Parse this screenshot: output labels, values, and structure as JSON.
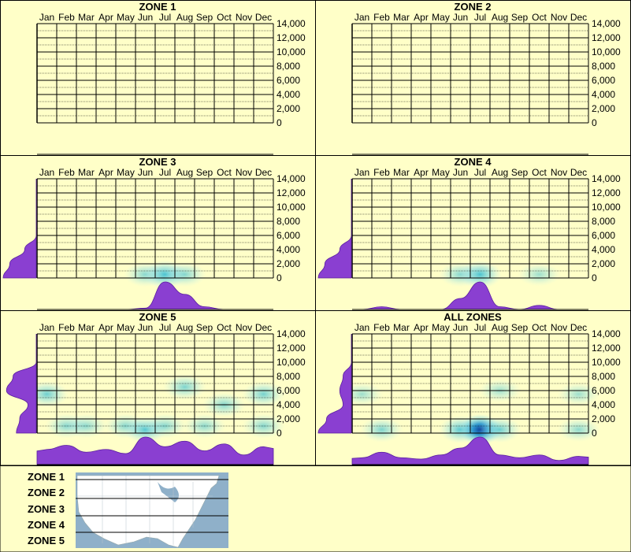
{
  "months": [
    "Jan",
    "Feb",
    "Mar",
    "Apr",
    "May",
    "Jun",
    "Jul",
    "Aug",
    "Sep",
    "Oct",
    "Nov",
    "Dec"
  ],
  "y_ticks": [
    "0",
    "2,000",
    "4,000",
    "6,000",
    "8,000",
    "10,000",
    "12,000",
    "14,000"
  ],
  "colors": {
    "background": "#ffffc8",
    "density": "#8a3fd1",
    "heat_low": "#c5f0f5",
    "heat_mid": "#2ab7d0",
    "heat_high": "#0a3f9c",
    "map_water": "#8fb0c9",
    "map_land": "#ffffff"
  },
  "chart_data": [
    {
      "type": "heatmap",
      "title": "ZONE 1",
      "ylim": [
        0,
        14000
      ],
      "x": "months",
      "cells": [],
      "month_profile": [],
      "elevation_profile": []
    },
    {
      "type": "heatmap",
      "title": "ZONE 2",
      "ylim": [
        0,
        14000
      ],
      "x": "months",
      "cells": [],
      "month_profile": [],
      "elevation_profile": []
    },
    {
      "type": "heatmap",
      "title": "ZONE 3",
      "ylim": [
        0,
        14000
      ],
      "x": "months",
      "cells": [
        {
          "month": "Jun",
          "elevation": 500,
          "intensity": 0.3
        },
        {
          "month": "Jul",
          "elevation": 500,
          "intensity": 0.7
        },
        {
          "month": "Aug",
          "elevation": 500,
          "intensity": 0.3
        }
      ],
      "month_profile": [
        0,
        0,
        0,
        0,
        0,
        0.05,
        1.0,
        0.55,
        0.1,
        0,
        0,
        0
      ],
      "elevation_profile": [
        1.0,
        0.8,
        0.35,
        0,
        0,
        0,
        0,
        0
      ]
    },
    {
      "type": "heatmap",
      "title": "ZONE 4",
      "ylim": [
        0,
        14000
      ],
      "x": "months",
      "cells": [
        {
          "month": "Jun",
          "elevation": 500,
          "intensity": 0.3
        },
        {
          "month": "Jul",
          "elevation": 500,
          "intensity": 0.65
        },
        {
          "month": "Oct",
          "elevation": 500,
          "intensity": 0.15
        }
      ],
      "month_profile": [
        0,
        0.1,
        0,
        0,
        0,
        0.4,
        1.0,
        0.1,
        0,
        0.15,
        0,
        0
      ],
      "elevation_profile": [
        1.0,
        0.8,
        0.35,
        0,
        0,
        0,
        0,
        0
      ]
    },
    {
      "type": "heatmap",
      "title": "ZONE 5",
      "ylim": [
        0,
        14000
      ],
      "x": "months",
      "cells": [
        {
          "month": "Jan",
          "elevation": 5500,
          "intensity": 0.45
        },
        {
          "month": "Feb",
          "elevation": 1000,
          "intensity": 0.3
        },
        {
          "month": "Mar",
          "elevation": 1000,
          "intensity": 0.25
        },
        {
          "month": "May",
          "elevation": 1000,
          "intensity": 0.3
        },
        {
          "month": "Jun",
          "elevation": 500,
          "intensity": 0.6
        },
        {
          "month": "Jul",
          "elevation": 1000,
          "intensity": 0.3
        },
        {
          "month": "Aug",
          "elevation": 6500,
          "intensity": 0.35
        },
        {
          "month": "Sep",
          "elevation": 1000,
          "intensity": 0.25
        },
        {
          "month": "Oct",
          "elevation": 4000,
          "intensity": 0.3
        },
        {
          "month": "Dec",
          "elevation": 5500,
          "intensity": 0.4
        },
        {
          "month": "Dec",
          "elevation": 1000,
          "intensity": 0.3
        }
      ],
      "month_profile": [
        0.55,
        0.7,
        0.45,
        0.55,
        0.4,
        1.0,
        0.65,
        0.85,
        0.5,
        0.75,
        0.35,
        0.65
      ],
      "elevation_profile": [
        0.6,
        0.5,
        0.25,
        0.9,
        0.7,
        0,
        0,
        0
      ]
    },
    {
      "type": "heatmap",
      "title": "ALL ZONES",
      "ylim": [
        0,
        14000
      ],
      "x": "months",
      "cells": [
        {
          "month": "Jan",
          "elevation": 5500,
          "intensity": 0.15
        },
        {
          "month": "Feb",
          "elevation": 500,
          "intensity": 0.35
        },
        {
          "month": "Jun",
          "elevation": 500,
          "intensity": 0.6
        },
        {
          "month": "Jul",
          "elevation": 500,
          "intensity": 1.0
        },
        {
          "month": "Aug",
          "elevation": 500,
          "intensity": 0.45
        },
        {
          "month": "Aug",
          "elevation": 6000,
          "intensity": 0.15
        },
        {
          "month": "Dec",
          "elevation": 5500,
          "intensity": 0.15
        },
        {
          "month": "Dec",
          "elevation": 500,
          "intensity": 0.25
        }
      ],
      "month_profile": [
        0.25,
        0.45,
        0.25,
        0.2,
        0.35,
        0.6,
        1.0,
        0.35,
        0.25,
        0.35,
        0.15,
        0.3
      ],
      "elevation_profile": [
        1.0,
        0.75,
        0.25,
        0.35,
        0.25,
        0,
        0,
        0
      ]
    }
  ],
  "legend": {
    "zones": [
      "ZONE 1",
      "ZONE 2",
      "ZONE 3",
      "ZONE 4",
      "ZONE 5"
    ]
  }
}
